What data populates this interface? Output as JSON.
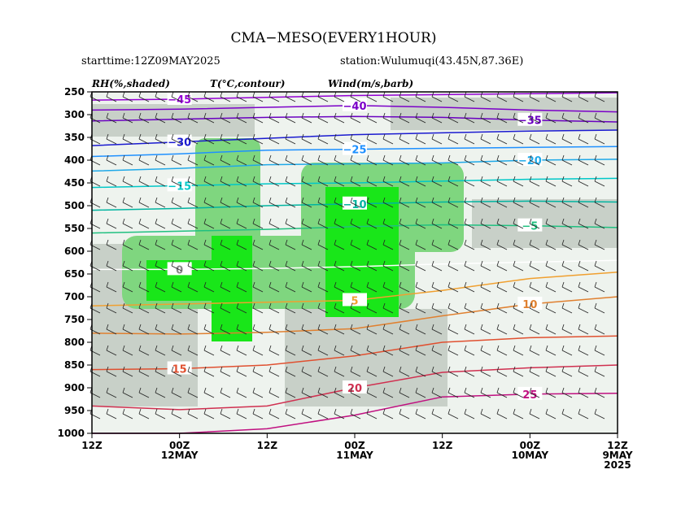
{
  "title": "CMA−MESO(EVERY1HOUR)",
  "starttime": "starttime:12Z09MAY2025",
  "station": "station:Wulumuqi(43.45N,87.36E)",
  "legend": {
    "rh": "RH(%,shaded)",
    "temp": "T(°C,contour)",
    "wind": "Wind(m/s,barb)"
  },
  "chart_data": {
    "type": "heatmap",
    "subtype": "time-height cross section",
    "y_axis": {
      "ticks": [
        250,
        300,
        350,
        400,
        450,
        500,
        550,
        600,
        650,
        700,
        750,
        800,
        850,
        900,
        950,
        1000
      ],
      "range": [
        250,
        1000
      ],
      "direction": "pressure decreasing upward"
    },
    "x_axis": {
      "ticks": [
        {
          "x": 0,
          "label": "12Z",
          "sub": ""
        },
        {
          "x": 12,
          "label": "00Z",
          "sub": "12MAY"
        },
        {
          "x": 24,
          "label": "12Z",
          "sub": ""
        },
        {
          "x": 36,
          "label": "00Z",
          "sub": "11MAY"
        },
        {
          "x": 48,
          "label": "12Z",
          "sub": ""
        },
        {
          "x": 60,
          "label": "00Z",
          "sub": "10MAY"
        },
        {
          "x": 72,
          "label": "12Z",
          "sub": "9MAY",
          "sub2": "2025"
        }
      ],
      "range": [
        0,
        72
      ],
      "direction": "time decreasing to the right"
    },
    "temperature_contours": [
      {
        "value": -45,
        "color": "#9400d3",
        "points": [
          [
            0,
            268
          ],
          [
            12,
            266
          ],
          [
            24,
            262
          ],
          [
            36,
            258
          ],
          [
            48,
            256
          ],
          [
            60,
            254
          ],
          [
            72,
            252
          ]
        ]
      },
      {
        "value": -40,
        "color": "#7b00c8",
        "points": [
          [
            0,
            290
          ],
          [
            12,
            288
          ],
          [
            24,
            284
          ],
          [
            36,
            280
          ],
          [
            48,
            284
          ],
          [
            60,
            290
          ],
          [
            72,
            294
          ]
        ]
      },
      {
        "value": -35,
        "color": "#6a00c0",
        "points": [
          [
            0,
            314
          ],
          [
            12,
            310
          ],
          [
            24,
            306
          ],
          [
            36,
            304
          ],
          [
            48,
            306
          ],
          [
            60,
            312
          ],
          [
            72,
            316
          ]
        ]
      },
      {
        "value": -30,
        "color": "#1a1ad0",
        "points": [
          [
            0,
            368
          ],
          [
            12,
            360
          ],
          [
            24,
            352
          ],
          [
            36,
            344
          ],
          [
            48,
            340
          ],
          [
            60,
            336
          ],
          [
            72,
            334
          ]
        ]
      },
      {
        "value": -25,
        "color": "#1e90ff",
        "points": [
          [
            0,
            392
          ],
          [
            12,
            386
          ],
          [
            24,
            378
          ],
          [
            36,
            376
          ],
          [
            48,
            374
          ],
          [
            60,
            372
          ],
          [
            72,
            370
          ]
        ]
      },
      {
        "value": -20,
        "color": "#1fa9e8",
        "points": [
          [
            0,
            424
          ],
          [
            12,
            418
          ],
          [
            24,
            410
          ],
          [
            36,
            408
          ],
          [
            48,
            406
          ],
          [
            60,
            400
          ],
          [
            72,
            398
          ]
        ]
      },
      {
        "value": -15,
        "color": "#00c8c8",
        "points": [
          [
            0,
            460
          ],
          [
            12,
            456
          ],
          [
            24,
            452
          ],
          [
            36,
            450
          ],
          [
            48,
            446
          ],
          [
            60,
            442
          ],
          [
            72,
            440
          ]
        ]
      },
      {
        "value": -10,
        "color": "#00b4a0",
        "points": [
          [
            0,
            510
          ],
          [
            12,
            506
          ],
          [
            24,
            500
          ],
          [
            36,
            496
          ],
          [
            48,
            492
          ],
          [
            60,
            490
          ],
          [
            72,
            492
          ]
        ]
      },
      {
        "value": -5,
        "color": "#20c080",
        "points": [
          [
            0,
            560
          ],
          [
            12,
            556
          ],
          [
            24,
            552
          ],
          [
            36,
            546
          ],
          [
            48,
            542
          ],
          [
            60,
            544
          ],
          [
            72,
            548
          ]
        ]
      },
      {
        "value": 0,
        "color": "#ffffff",
        "points": [
          [
            0,
            640
          ],
          [
            12,
            640
          ],
          [
            24,
            638
          ],
          [
            36,
            634
          ],
          [
            48,
            628
          ],
          [
            60,
            624
          ],
          [
            72,
            620
          ]
        ]
      },
      {
        "value": 5,
        "color": "#f0a030",
        "points": [
          [
            0,
            720
          ],
          [
            12,
            716
          ],
          [
            24,
            712
          ],
          [
            36,
            708
          ],
          [
            48,
            686
          ],
          [
            60,
            660
          ],
          [
            72,
            646
          ]
        ]
      },
      {
        "value": 10,
        "color": "#e08030",
        "points": [
          [
            0,
            780
          ],
          [
            12,
            782
          ],
          [
            24,
            778
          ],
          [
            36,
            770
          ],
          [
            48,
            742
          ],
          [
            60,
            716
          ],
          [
            72,
            700
          ]
        ]
      },
      {
        "value": 15,
        "color": "#e05030",
        "points": [
          [
            0,
            860
          ],
          [
            12,
            858
          ],
          [
            24,
            850
          ],
          [
            36,
            830
          ],
          [
            48,
            800
          ],
          [
            60,
            790
          ],
          [
            72,
            786
          ]
        ]
      },
      {
        "value": 20,
        "color": "#d03050",
        "points": [
          [
            0,
            940
          ],
          [
            12,
            948
          ],
          [
            24,
            940
          ],
          [
            36,
            900
          ],
          [
            48,
            866
          ],
          [
            60,
            856
          ],
          [
            72,
            850
          ]
        ]
      },
      {
        "value": 25,
        "color": "#c01080",
        "points": [
          [
            0,
            1000
          ],
          [
            12,
            1000
          ],
          [
            24,
            990
          ],
          [
            36,
            960
          ],
          [
            48,
            920
          ],
          [
            60,
            914
          ],
          [
            72,
            912
          ]
        ]
      }
    ],
    "rh_shading": [
      {
        "level": 30,
        "color": "#eef3ee"
      },
      {
        "level": 50,
        "color": "#c8d0c8"
      },
      {
        "level": 70,
        "color": "#7fd67f"
      },
      {
        "level": 90,
        "color": "#19e619"
      }
    ]
  }
}
